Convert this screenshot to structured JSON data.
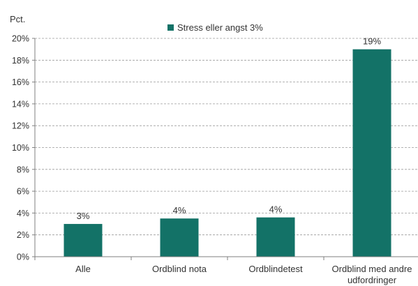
{
  "chart_data": {
    "type": "bar",
    "ylabel": "Pct.",
    "categories": [
      "Alle",
      "Ordblind nota",
      "Ordblindetest",
      "Ordblind med andre udfordringer"
    ],
    "series": [
      {
        "name": "Stress eller angst 3%",
        "values": [
          3,
          3.5,
          3.6,
          19
        ],
        "data_labels": [
          "3%",
          "4%",
          "4%",
          "19%"
        ],
        "color": "#137267"
      }
    ],
    "ylim": [
      0,
      20
    ],
    "yticks": [
      0,
      2,
      4,
      6,
      8,
      10,
      12,
      14,
      16,
      18,
      20
    ],
    "ytick_labels": [
      "0%",
      "2%",
      "4%",
      "6%",
      "8%",
      "10%",
      "12%",
      "14%",
      "16%",
      "18%",
      "20%"
    ],
    "grid": true,
    "legend_position": "top"
  }
}
